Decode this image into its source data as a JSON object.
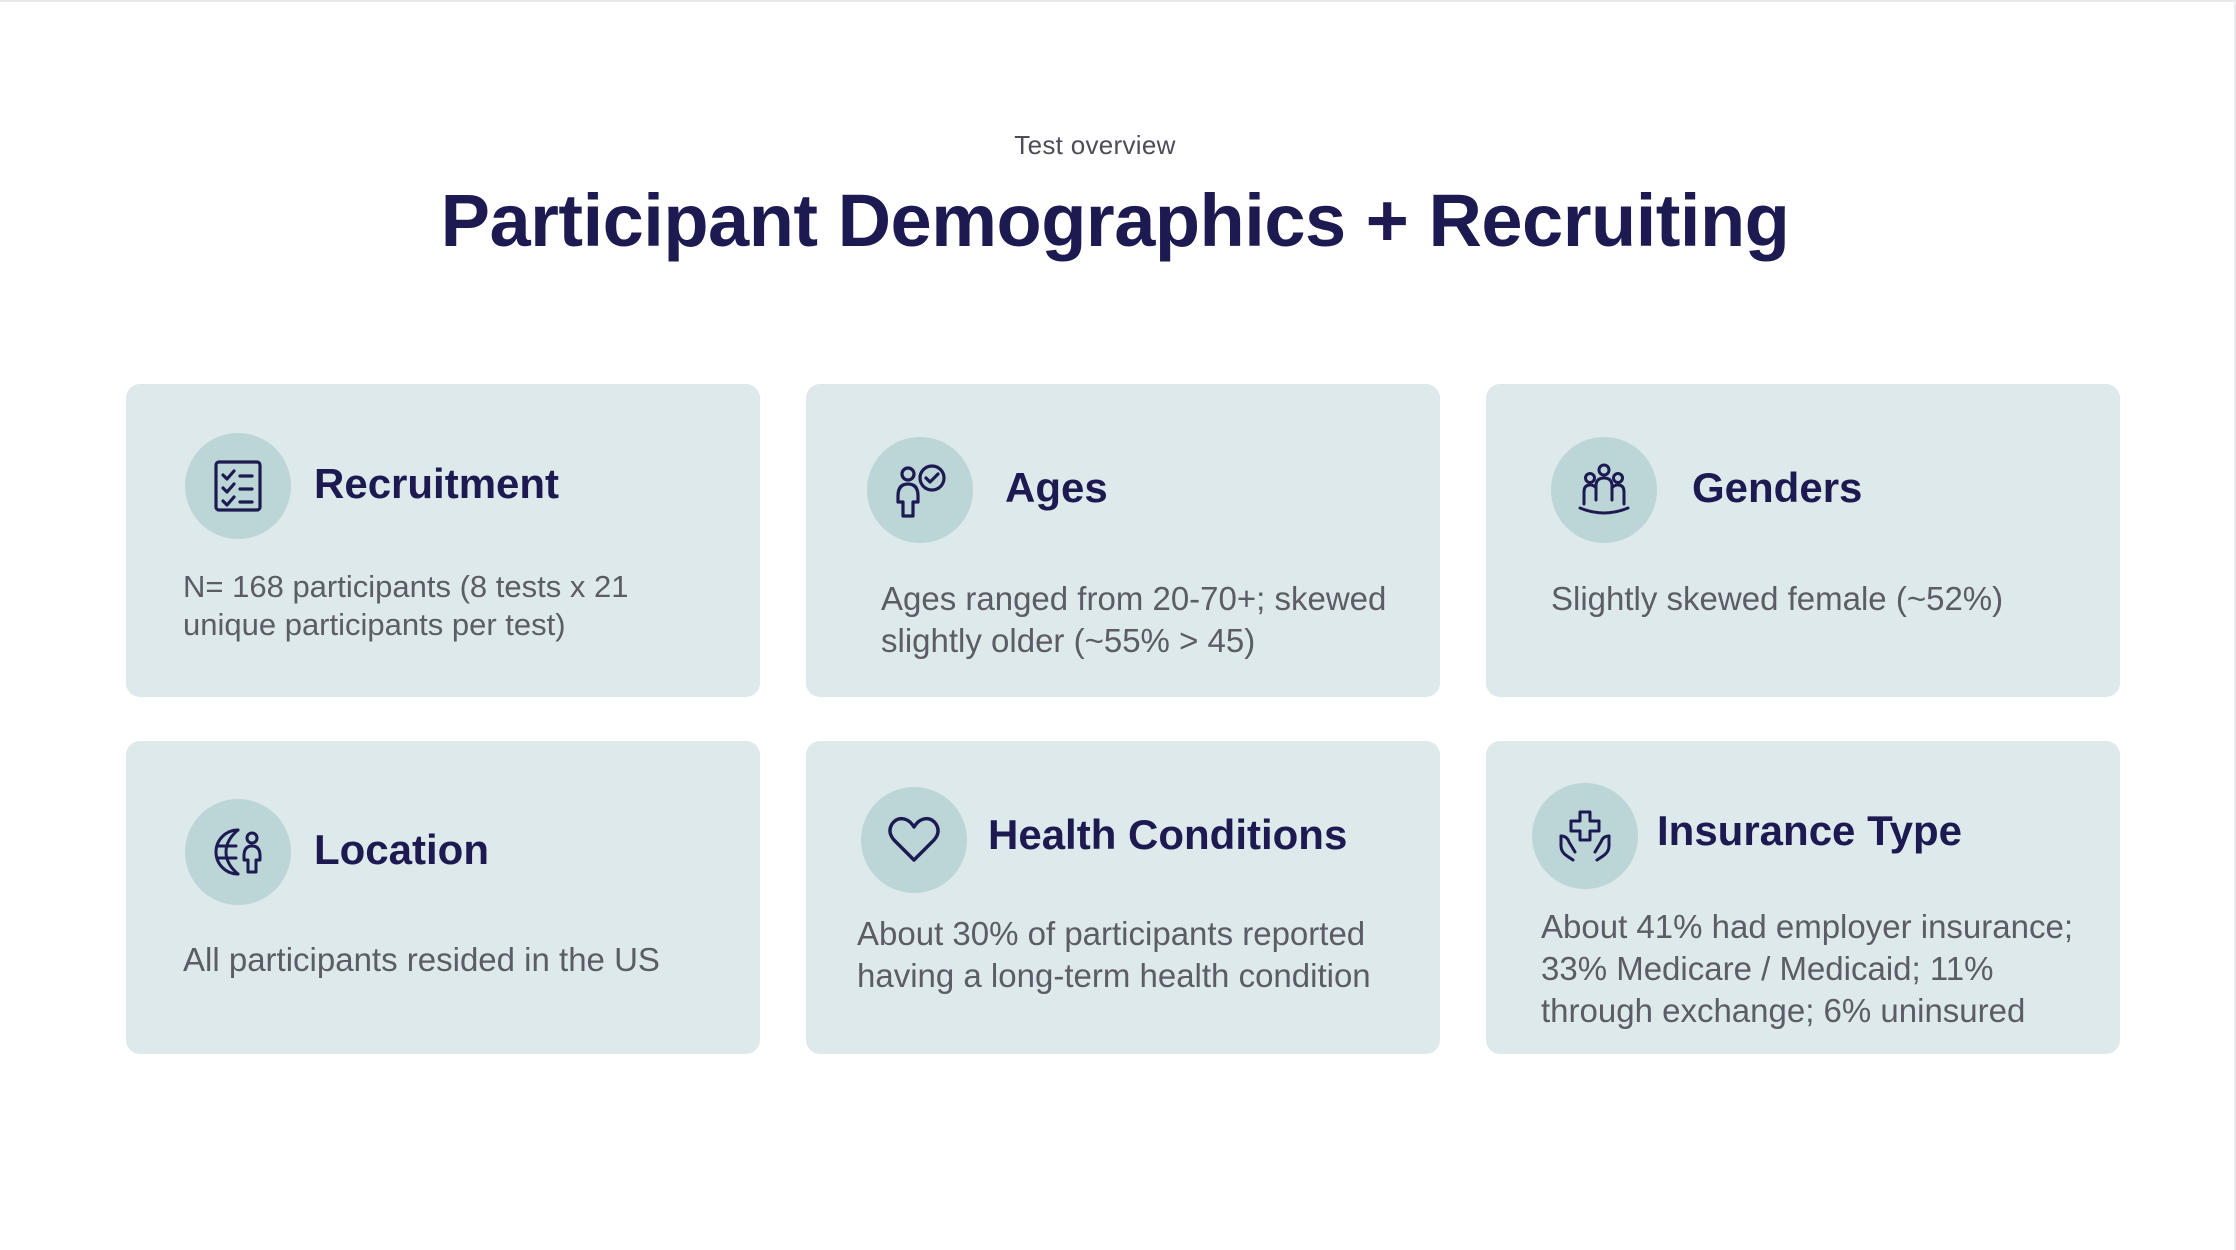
{
  "header": {
    "eyebrow": "Test overview",
    "title": "Participant Demographics + Recruiting"
  },
  "cards": [
    {
      "title": "Recruitment",
      "icon": "checklist-icon",
      "text": "N= 168 participants (8 tests x 21 unique participants per test)"
    },
    {
      "title": "Ages",
      "icon": "person-check-icon",
      "text": "Ages ranged from 20-70+; skewed slightly older (~55% > 45)"
    },
    {
      "title": "Genders",
      "icon": "group-people-icon",
      "text": "Slightly skewed female (~52%)"
    },
    {
      "title": "Location",
      "icon": "globe-person-icon",
      "text": "All participants resided in the US"
    },
    {
      "title": "Health Conditions",
      "icon": "heart-icon",
      "text": "About 30% of participants reported having a long-term health condition"
    },
    {
      "title": "Insurance Type",
      "icon": "hands-medical-cross-icon",
      "text": "About 41% had employer insurance; 33% Medicare / Medicaid; 11% through exchange; 6% uninsured"
    }
  ],
  "colors": {
    "title": "#1d1a52",
    "card_background": "#dde9ea",
    "icon_circle": "#bcd6d8",
    "body_text": "#5c5c66"
  }
}
